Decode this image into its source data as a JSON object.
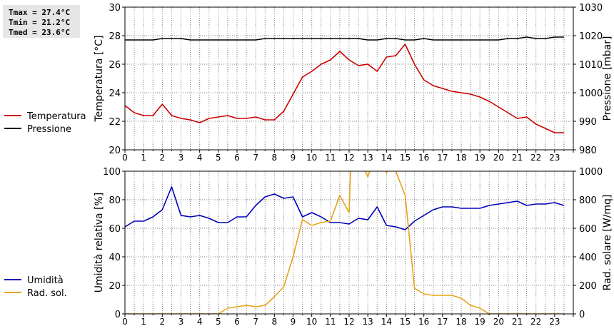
{
  "stats": {
    "tmax": "Tmax = 27.4°C",
    "tmin": "Tmin = 21.2°C",
    "tmed": "Tmed = 23.6°C"
  },
  "colors": {
    "temperature": "#cc0000",
    "pressure": "#000000",
    "humidity": "#0000bb",
    "radiation": "#e8a317",
    "grid": "#808080"
  },
  "chart_data": [
    {
      "type": "line",
      "ylabel": "Temperatura [°C]",
      "y2label": "Pressione [mbar]",
      "xlim": [
        0,
        24
      ],
      "ylim": [
        20,
        30
      ],
      "y2lim": [
        980,
        1030
      ],
      "x_ticks": [
        "0",
        "1",
        "2",
        "3",
        "4",
        "5",
        "6",
        "7",
        "8",
        "9",
        "10",
        "11",
        "12",
        "13",
        "14",
        "15",
        "16",
        "17",
        "18",
        "19",
        "20",
        "21",
        "22",
        "23"
      ],
      "y_ticks": [
        "20",
        "22",
        "24",
        "26",
        "28",
        "30"
      ],
      "y2_ticks": [
        "980",
        "990",
        "1000",
        "1010",
        "1020",
        "1030"
      ],
      "grid": true,
      "legend": "left",
      "series": [
        {
          "name": "Temperatura",
          "axis": "left",
          "x": [
            0,
            0.5,
            1,
            1.5,
            2,
            2.5,
            3,
            3.5,
            4,
            4.5,
            5,
            5.5,
            6,
            6.5,
            7,
            7.5,
            8,
            8.5,
            9,
            9.5,
            10,
            10.5,
            11,
            11.5,
            12,
            12.5,
            13,
            13.5,
            14,
            14.5,
            15,
            15.5,
            16,
            16.5,
            17,
            17.5,
            18,
            18.5,
            19,
            19.5,
            20,
            20.5,
            21,
            21.5,
            22,
            22.5,
            23,
            23.5
          ],
          "values": [
            23.1,
            22.6,
            22.4,
            22.4,
            23.2,
            22.4,
            22.2,
            22.1,
            21.9,
            22.2,
            22.3,
            22.4,
            22.2,
            22.2,
            22.3,
            22.1,
            22.1,
            22.7,
            23.9,
            25.1,
            25.5,
            26.0,
            26.3,
            26.9,
            26.3,
            25.9,
            26.0,
            25.5,
            26.5,
            26.6,
            27.4,
            26.0,
            24.9,
            24.5,
            24.3,
            24.1,
            24.0,
            23.9,
            23.7,
            23.4,
            23.0,
            22.6,
            22.2,
            22.3,
            21.8,
            21.5,
            21.2,
            21.2
          ]
        },
        {
          "name": "Pressione",
          "axis": "right",
          "x": [
            0,
            0.5,
            1,
            1.5,
            2,
            2.5,
            3,
            3.5,
            4,
            4.5,
            5,
            5.5,
            6,
            6.5,
            7,
            7.5,
            8,
            8.5,
            9,
            9.5,
            10,
            10.5,
            11,
            11.5,
            12,
            12.5,
            13,
            13.5,
            14,
            14.5,
            15,
            15.5,
            16,
            16.5,
            17,
            17.5,
            18,
            18.5,
            19,
            19.5,
            20,
            20.5,
            21,
            21.5,
            22,
            22.5,
            23,
            23.5
          ],
          "values": [
            1018.5,
            1018.5,
            1018.5,
            1018.5,
            1019,
            1019,
            1019,
            1018.5,
            1018.5,
            1018.5,
            1018.5,
            1018.5,
            1018.5,
            1018.5,
            1018.5,
            1019,
            1019,
            1019,
            1019,
            1019,
            1019,
            1019,
            1019,
            1019,
            1019,
            1019,
            1018.5,
            1018.5,
            1019,
            1019,
            1018.5,
            1018.5,
            1019,
            1018.5,
            1018.5,
            1018.5,
            1018.5,
            1018.5,
            1018.5,
            1018.5,
            1018.5,
            1019,
            1019,
            1019.5,
            1019,
            1019,
            1019.5,
            1019.5
          ]
        }
      ]
    },
    {
      "type": "line",
      "ylabel": "Umidità relativa [%]",
      "y2label": "Rad. solare [W/mq]",
      "xlim": [
        0,
        24
      ],
      "ylim": [
        0,
        100
      ],
      "y2lim": [
        0,
        1000
      ],
      "x_ticks": [
        "0",
        "1",
        "2",
        "3",
        "4",
        "5",
        "6",
        "7",
        "8",
        "9",
        "10",
        "11",
        "12",
        "13",
        "14",
        "15",
        "16",
        "17",
        "18",
        "19",
        "20",
        "21",
        "22",
        "23"
      ],
      "y_ticks": [
        "0",
        "20",
        "40",
        "60",
        "80",
        "100"
      ],
      "y2_ticks": [
        "0",
        "200",
        "400",
        "600",
        "800",
        "1000"
      ],
      "grid": true,
      "legend": "left",
      "series": [
        {
          "name": "Umidità",
          "axis": "left",
          "x": [
            0,
            0.5,
            1,
            1.5,
            2,
            2.5,
            3,
            3.5,
            4,
            4.5,
            5,
            5.5,
            6,
            6.5,
            7,
            7.5,
            8,
            8.5,
            9,
            9.5,
            10,
            10.5,
            11,
            11.5,
            12,
            12.5,
            13,
            13.5,
            14,
            14.5,
            15,
            15.5,
            16,
            16.5,
            17,
            17.5,
            18,
            18.5,
            19,
            19.5,
            20,
            20.5,
            21,
            21.5,
            22,
            22.5,
            23,
            23.5
          ],
          "values": [
            61,
            65,
            65,
            68,
            73,
            89,
            69,
            68,
            69,
            67,
            64,
            64,
            68,
            68,
            76,
            82,
            84,
            81,
            82,
            68,
            71,
            68,
            64,
            64,
            63,
            67,
            66,
            75,
            62,
            61,
            59,
            65,
            69,
            73,
            75,
            75,
            74,
            74,
            74,
            76,
            77,
            78,
            79,
            76,
            77,
            77,
            78,
            76
          ]
        },
        {
          "name": "Rad. sol.",
          "axis": "right",
          "x": [
            0,
            0.5,
            1,
            1.5,
            2,
            2.5,
            3,
            3.5,
            4,
            4.5,
            5,
            5.5,
            6,
            6.5,
            7,
            7.5,
            8,
            8.5,
            9,
            9.5,
            10,
            10.5,
            11,
            11.5,
            12,
            12.1,
            12.5,
            13,
            13.1,
            13.5,
            14,
            14.2,
            14.5,
            15,
            15.5,
            16,
            16.5,
            17,
            17.5,
            18,
            18.5,
            19,
            19.5,
            20,
            20.5,
            21,
            21.5,
            22,
            22.5,
            23,
            23.5
          ],
          "values": [
            0,
            0,
            0,
            0,
            0,
            0,
            0,
            0,
            0,
            0,
            0,
            40,
            50,
            60,
            50,
            60,
            120,
            190,
            400,
            660,
            620,
            640,
            650,
            830,
            710,
            1100,
            1100,
            960,
            1000,
            1100,
            990,
            1020,
            1000,
            830,
            180,
            140,
            130,
            130,
            130,
            110,
            60,
            40,
            0,
            0,
            0,
            0,
            0,
            0,
            0,
            0,
            0
          ]
        }
      ]
    }
  ]
}
